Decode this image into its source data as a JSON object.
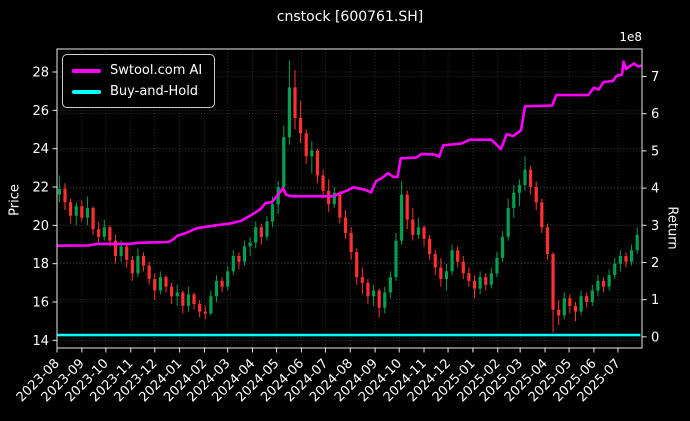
{
  "title": "cnstock [600761.SH]",
  "legend": {
    "items": [
      {
        "label": "Swtool.com AI",
        "color": "#ff00ff"
      },
      {
        "label": "Buy-and-Hold",
        "color": "#00ffff"
      }
    ]
  },
  "chart_data": {
    "type": "candlestick+line",
    "title": "cnstock [600761.SH]",
    "grid": true,
    "legend_position": "upper left",
    "x_axis": {
      "start_date": "2023-08-01",
      "end_date": "2025-07-31",
      "tick_labels": [
        "2023-08",
        "2023-09",
        "2023-10",
        "2023-11",
        "2023-12",
        "2024-01",
        "2024-02",
        "2024-03",
        "2024-04",
        "2024-05",
        "2024-06",
        "2024-07",
        "2024-08",
        "2024-09",
        "2024-10",
        "2024-11",
        "2024-12",
        "2025-01",
        "2025-02",
        "2025-03",
        "2025-04",
        "2025-05",
        "2025-06",
        "2025-07"
      ]
    },
    "left_axis": {
      "label": "Price",
      "ticks": [
        14,
        16,
        18,
        20,
        22,
        24,
        26,
        28
      ],
      "range": [
        13.6,
        29.2
      ]
    },
    "right_axis": {
      "label": "Return",
      "ticks": [
        0,
        1,
        2,
        3,
        4,
        5,
        6,
        7
      ],
      "range": [
        -0.3,
        7.74
      ],
      "offset_text": "1e8"
    },
    "colors": {
      "up_candle": "#00a050",
      "down_candle": "#ff3030",
      "ai_line": "#ff00ff",
      "buyhold_line": "#00ffff",
      "grid": "#3d3d3d",
      "axis": "#e8e8e8",
      "text": "#ffffff",
      "background": "#000000"
    },
    "candles_ohlc": {
      "columns": [
        "date",
        "open",
        "high",
        "low",
        "close"
      ],
      "rows": [
        [
          "2023-08-04",
          21.6,
          22.6,
          21.2,
          21.9
        ],
        [
          "2023-08-11",
          21.9,
          22.2,
          20.8,
          21.2
        ],
        [
          "2023-08-18",
          21.2,
          21.4,
          20.1,
          20.5
        ],
        [
          "2023-08-25",
          20.5,
          21.2,
          20.0,
          21.0
        ],
        [
          "2023-09-01",
          21.0,
          21.3,
          20.2,
          20.4
        ],
        [
          "2023-09-08",
          20.4,
          21.5,
          20.0,
          20.9
        ],
        [
          "2023-09-15",
          20.9,
          21.0,
          19.5,
          19.8
        ],
        [
          "2023-09-22",
          19.8,
          20.2,
          19.1,
          19.4
        ],
        [
          "2023-09-29",
          19.4,
          20.3,
          19.2,
          19.9
        ],
        [
          "2023-10-06",
          19.9,
          20.0,
          18.9,
          19.2
        ],
        [
          "2023-10-13",
          19.2,
          19.5,
          18.0,
          18.4
        ],
        [
          "2023-10-20",
          18.4,
          19.2,
          18.1,
          18.9
        ],
        [
          "2023-10-27",
          18.9,
          19.0,
          17.8,
          18.2
        ],
        [
          "2023-11-03",
          18.2,
          18.4,
          17.1,
          17.5
        ],
        [
          "2023-11-10",
          17.5,
          18.8,
          17.3,
          18.4
        ],
        [
          "2023-11-17",
          18.4,
          18.6,
          17.6,
          17.9
        ],
        [
          "2023-11-24",
          17.9,
          18.1,
          16.9,
          17.2
        ],
        [
          "2023-12-01",
          17.2,
          17.5,
          16.1,
          16.6
        ],
        [
          "2023-12-08",
          16.6,
          17.6,
          16.4,
          17.3
        ],
        [
          "2023-12-15",
          17.3,
          17.4,
          16.5,
          16.8
        ],
        [
          "2023-12-22",
          16.8,
          17.0,
          15.9,
          16.3
        ],
        [
          "2023-12-29",
          16.3,
          16.9,
          15.8,
          16.5
        ],
        [
          "2024-01-05",
          16.5,
          16.6,
          15.4,
          15.8
        ],
        [
          "2024-01-12",
          15.8,
          16.8,
          15.5,
          16.4
        ],
        [
          "2024-01-19",
          16.4,
          16.5,
          15.6,
          15.9
        ],
        [
          "2024-01-26",
          15.9,
          16.1,
          15.2,
          15.5
        ],
        [
          "2024-02-02",
          15.5,
          15.8,
          15.1,
          15.4
        ],
        [
          "2024-02-09",
          15.4,
          16.6,
          15.3,
          16.3
        ],
        [
          "2024-02-16",
          16.3,
          17.4,
          16.0,
          17.1
        ],
        [
          "2024-02-23",
          17.1,
          17.3,
          16.5,
          16.8
        ],
        [
          "2024-03-01",
          16.8,
          17.9,
          16.6,
          17.6
        ],
        [
          "2024-03-08",
          17.6,
          18.7,
          17.4,
          18.4
        ],
        [
          "2024-03-15",
          18.4,
          18.6,
          17.7,
          18.1
        ],
        [
          "2024-03-22",
          18.1,
          19.2,
          17.9,
          18.9
        ],
        [
          "2024-03-29",
          18.9,
          19.4,
          18.4,
          19.1
        ],
        [
          "2024-04-05",
          19.1,
          20.2,
          18.8,
          19.9
        ],
        [
          "2024-04-12",
          19.9,
          20.1,
          19.0,
          19.4
        ],
        [
          "2024-04-19",
          19.4,
          20.5,
          19.2,
          20.2
        ],
        [
          "2024-04-26",
          20.2,
          21.5,
          19.9,
          21.1
        ],
        [
          "2024-05-03",
          21.1,
          22.3,
          20.6,
          22.0
        ],
        [
          "2024-05-10",
          22.0,
          25.2,
          21.8,
          24.6
        ],
        [
          "2024-05-17",
          24.6,
          28.6,
          24.2,
          27.2
        ],
        [
          "2024-05-24",
          27.2,
          28.1,
          25.0,
          25.6
        ],
        [
          "2024-05-31",
          25.6,
          26.5,
          24.3,
          24.8
        ],
        [
          "2024-06-07",
          24.8,
          25.0,
          23.2,
          23.6
        ],
        [
          "2024-06-14",
          23.6,
          24.4,
          22.7,
          23.9
        ],
        [
          "2024-06-21",
          23.9,
          24.0,
          22.2,
          22.6
        ],
        [
          "2024-06-28",
          22.6,
          22.9,
          21.4,
          21.8
        ],
        [
          "2024-07-05",
          21.8,
          22.4,
          20.7,
          21.1
        ],
        [
          "2024-07-12",
          21.1,
          22.0,
          20.9,
          21.7
        ],
        [
          "2024-07-19",
          21.7,
          21.8,
          20.1,
          20.4
        ],
        [
          "2024-07-26",
          20.4,
          20.8,
          19.3,
          19.6
        ],
        [
          "2024-08-02",
          19.6,
          19.9,
          18.2,
          18.6
        ],
        [
          "2024-08-09",
          18.6,
          18.8,
          16.9,
          17.3
        ],
        [
          "2024-08-16",
          17.3,
          17.8,
          16.4,
          17.0
        ],
        [
          "2024-08-23",
          17.0,
          17.2,
          15.9,
          16.3
        ],
        [
          "2024-08-30",
          16.3,
          16.9,
          15.8,
          16.6
        ],
        [
          "2024-09-06",
          16.6,
          16.7,
          15.2,
          15.7
        ],
        [
          "2024-09-13",
          15.7,
          16.8,
          15.4,
          16.5
        ],
        [
          "2024-09-20",
          16.5,
          17.6,
          16.2,
          17.3
        ],
        [
          "2024-09-27",
          17.3,
          19.6,
          17.1,
          19.2
        ],
        [
          "2024-10-04",
          19.2,
          22.3,
          19.0,
          21.6
        ],
        [
          "2024-10-11",
          21.6,
          21.8,
          19.8,
          20.3
        ],
        [
          "2024-10-18",
          20.3,
          20.9,
          19.2,
          19.5
        ],
        [
          "2024-10-25",
          19.5,
          20.4,
          19.3,
          19.9
        ],
        [
          "2024-11-01",
          19.9,
          20.0,
          18.9,
          19.3
        ],
        [
          "2024-11-08",
          19.3,
          19.5,
          18.2,
          18.5
        ],
        [
          "2024-11-15",
          18.5,
          18.7,
          17.4,
          17.8
        ],
        [
          "2024-11-22",
          17.8,
          18.3,
          16.8,
          17.2
        ],
        [
          "2024-11-29",
          17.2,
          18.0,
          16.6,
          17.6
        ],
        [
          "2024-12-06",
          17.6,
          19.0,
          17.4,
          18.7
        ],
        [
          "2024-12-13",
          18.7,
          18.9,
          17.8,
          18.1
        ],
        [
          "2024-12-20",
          18.1,
          18.4,
          17.2,
          17.5
        ],
        [
          "2024-12-27",
          17.5,
          17.8,
          16.8,
          17.1
        ],
        [
          "2025-01-03",
          17.1,
          17.4,
          16.2,
          16.7
        ],
        [
          "2025-01-10",
          16.7,
          17.6,
          16.4,
          17.3
        ],
        [
          "2025-01-17",
          17.3,
          17.5,
          16.6,
          16.9
        ],
        [
          "2025-01-24",
          16.9,
          17.8,
          16.7,
          17.5
        ],
        [
          "2025-01-31",
          17.5,
          18.6,
          17.3,
          18.3
        ],
        [
          "2025-02-07",
          18.3,
          19.7,
          18.1,
          19.4
        ],
        [
          "2025-02-14",
          19.4,
          21.4,
          19.2,
          20.9
        ],
        [
          "2025-02-21",
          20.9,
          22.1,
          20.4,
          21.7
        ],
        [
          "2025-02-28",
          21.7,
          22.4,
          21.0,
          22.1
        ],
        [
          "2025-03-07",
          22.1,
          23.6,
          21.8,
          22.9
        ],
        [
          "2025-03-14",
          22.9,
          23.1,
          21.6,
          22.0
        ],
        [
          "2025-03-21",
          22.0,
          22.3,
          20.8,
          21.2
        ],
        [
          "2025-03-28",
          21.2,
          21.4,
          19.6,
          19.9
        ],
        [
          "2025-04-04",
          19.9,
          20.1,
          18.2,
          18.5
        ],
        [
          "2025-04-11",
          18.5,
          18.6,
          14.4,
          15.6
        ],
        [
          "2025-04-18",
          15.6,
          16.1,
          14.8,
          15.3
        ],
        [
          "2025-04-25",
          15.3,
          16.5,
          15.1,
          16.2
        ],
        [
          "2025-05-02",
          16.2,
          16.4,
          15.4,
          15.8
        ],
        [
          "2025-05-09",
          15.8,
          16.0,
          15.0,
          15.5
        ],
        [
          "2025-05-16",
          15.5,
          16.6,
          15.3,
          16.3
        ],
        [
          "2025-05-23",
          16.3,
          16.5,
          15.7,
          16.0
        ],
        [
          "2025-05-30",
          16.0,
          16.9,
          15.8,
          16.6
        ],
        [
          "2025-06-06",
          16.6,
          17.4,
          16.3,
          17.1
        ],
        [
          "2025-06-13",
          17.1,
          17.3,
          16.5,
          16.8
        ],
        [
          "2025-06-20",
          16.8,
          17.7,
          16.6,
          17.4
        ],
        [
          "2025-06-27",
          17.4,
          18.3,
          17.2,
          18.0
        ],
        [
          "2025-07-04",
          18.0,
          18.7,
          17.6,
          18.4
        ],
        [
          "2025-07-11",
          18.4,
          18.6,
          17.8,
          18.1
        ],
        [
          "2025-07-18",
          18.1,
          19.0,
          17.9,
          18.7
        ],
        [
          "2025-07-25",
          18.7,
          19.9,
          18.5,
          19.5
        ]
      ]
    },
    "series": [
      {
        "name": "Swtool.com AI",
        "axis": "right",
        "color": "#ff00ff",
        "unit": "1e8",
        "points": [
          [
            "2023-08-01",
            2.45
          ],
          [
            "2023-09-10",
            2.46
          ],
          [
            "2023-09-20",
            2.5
          ],
          [
            "2023-11-01",
            2.5
          ],
          [
            "2023-11-10",
            2.53
          ],
          [
            "2023-12-18",
            2.55
          ],
          [
            "2023-12-24",
            2.62
          ],
          [
            "2023-12-29",
            2.72
          ],
          [
            "2024-01-10",
            2.8
          ],
          [
            "2024-01-22",
            2.92
          ],
          [
            "2024-02-15",
            3.0
          ],
          [
            "2024-03-05",
            3.05
          ],
          [
            "2024-03-18",
            3.12
          ],
          [
            "2024-03-26",
            3.22
          ],
          [
            "2024-04-05",
            3.35
          ],
          [
            "2024-04-12",
            3.45
          ],
          [
            "2024-04-17",
            3.6
          ],
          [
            "2024-04-25",
            3.62
          ],
          [
            "2024-05-02",
            3.8
          ],
          [
            "2024-05-09",
            4.0
          ],
          [
            "2024-05-13",
            3.82
          ],
          [
            "2024-05-20",
            3.78
          ],
          [
            "2024-07-10",
            3.78
          ],
          [
            "2024-07-18",
            3.85
          ],
          [
            "2024-07-30",
            3.95
          ],
          [
            "2024-08-05",
            4.02
          ],
          [
            "2024-08-20",
            3.95
          ],
          [
            "2024-08-27",
            3.88
          ],
          [
            "2024-09-02",
            4.18
          ],
          [
            "2024-09-10",
            4.28
          ],
          [
            "2024-09-17",
            4.4
          ],
          [
            "2024-09-24",
            4.3
          ],
          [
            "2024-09-29",
            4.3
          ],
          [
            "2024-10-03",
            4.8
          ],
          [
            "2024-10-22",
            4.82
          ],
          [
            "2024-10-29",
            4.92
          ],
          [
            "2024-11-14",
            4.9
          ],
          [
            "2024-11-20",
            4.85
          ],
          [
            "2024-11-25",
            5.15
          ],
          [
            "2024-12-18",
            5.2
          ],
          [
            "2024-12-28",
            5.3
          ],
          [
            "2025-01-24",
            5.3
          ],
          [
            "2025-02-05",
            5.05
          ],
          [
            "2025-02-12",
            5.45
          ],
          [
            "2025-02-20",
            5.4
          ],
          [
            "2025-03-02",
            5.55
          ],
          [
            "2025-03-07",
            6.2
          ],
          [
            "2025-04-10",
            6.22
          ],
          [
            "2025-04-15",
            6.5
          ],
          [
            "2025-05-25",
            6.5
          ],
          [
            "2025-06-01",
            6.7
          ],
          [
            "2025-06-07",
            6.65
          ],
          [
            "2025-06-13",
            6.85
          ],
          [
            "2025-06-25",
            6.88
          ],
          [
            "2025-06-29",
            7.02
          ],
          [
            "2025-07-06",
            7.05
          ],
          [
            "2025-07-08",
            7.4
          ],
          [
            "2025-07-11",
            7.2
          ],
          [
            "2025-07-16",
            7.28
          ],
          [
            "2025-07-21",
            7.35
          ],
          [
            "2025-07-26",
            7.27
          ],
          [
            "2025-07-30",
            7.3
          ]
        ]
      },
      {
        "name": "Buy-and-Hold",
        "axis": "right",
        "color": "#00ffff",
        "unit": "1e8",
        "points": [
          [
            "2023-08-01",
            0.05
          ],
          [
            "2025-07-29",
            0.05
          ]
        ]
      }
    ]
  }
}
